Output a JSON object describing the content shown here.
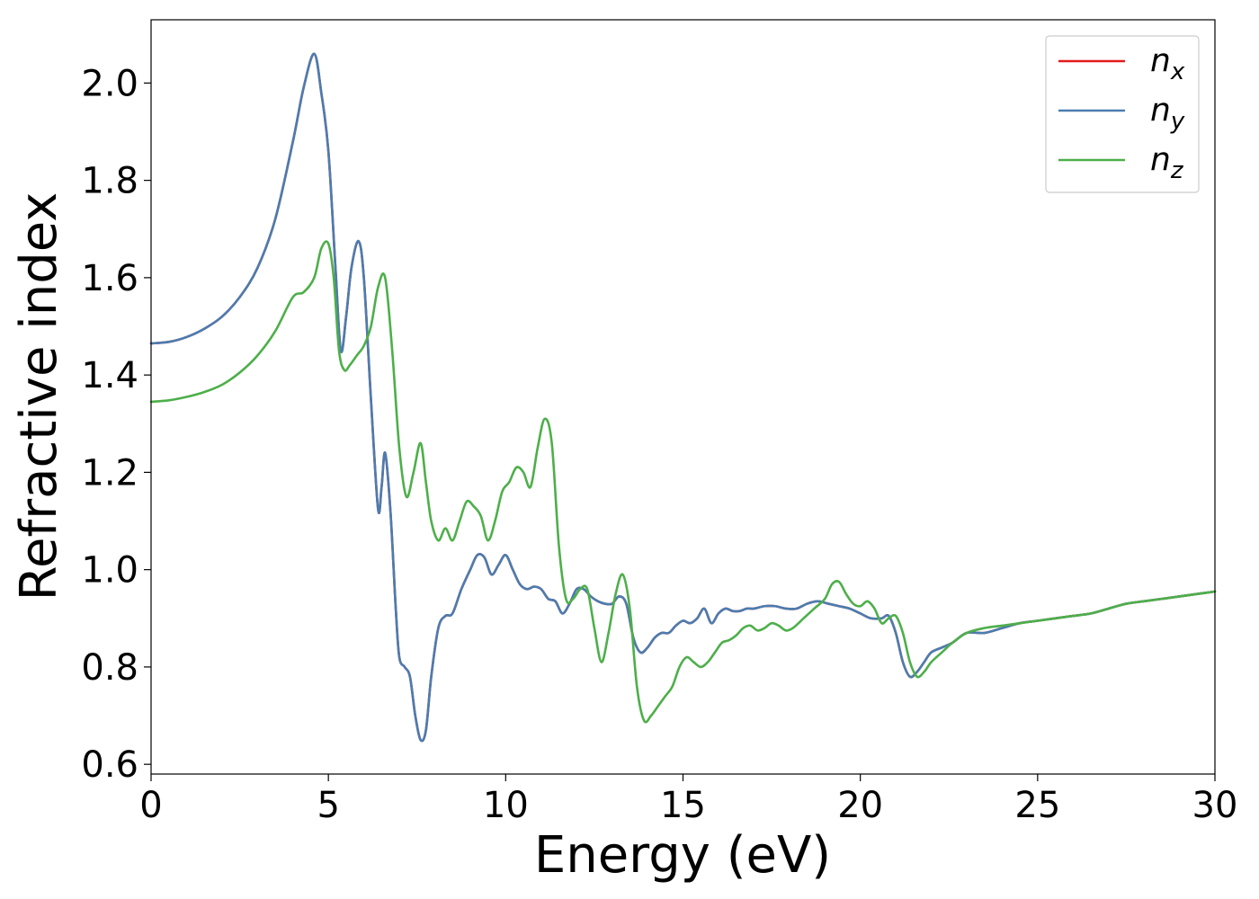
{
  "chart_data": {
    "type": "line",
    "xlabel": "Energy (eV)",
    "ylabel": "Refractive index",
    "xlim": [
      0,
      30
    ],
    "ylim": [
      0.58,
      2.13
    ],
    "xticks": [
      "0",
      "5",
      "10",
      "15",
      "20",
      "25",
      "30"
    ],
    "yticks": [
      "0.6",
      "0.8",
      "1.0",
      "1.2",
      "1.4",
      "1.6",
      "1.8",
      "2.0"
    ],
    "grid": false,
    "legend_position": "top-right",
    "series": [
      {
        "name": "n_x",
        "legend_main": "n",
        "legend_sub": "x",
        "color": "#e41a1c",
        "x": [
          0,
          0.5,
          1,
          1.5,
          2,
          2.5,
          3,
          3.5,
          4,
          4.3,
          4.6,
          4.8,
          5,
          5.2,
          5.35,
          5.5,
          5.65,
          5.85,
          6,
          6.2,
          6.4,
          6.5,
          6.6,
          6.75,
          6.9,
          7,
          7.15,
          7.3,
          7.45,
          7.6,
          7.75,
          7.9,
          8.1,
          8.3,
          8.5,
          8.75,
          9,
          9.2,
          9.4,
          9.6,
          9.8,
          10,
          10.2,
          10.4,
          10.6,
          10.8,
          11,
          11.2,
          11.4,
          11.6,
          11.8,
          12,
          12.2,
          12.4,
          12.6,
          12.8,
          13,
          13.2,
          13.4,
          13.6,
          13.8,
          14,
          14.2,
          14.4,
          14.6,
          14.8,
          15,
          15.2,
          15.4,
          15.6,
          15.8,
          16,
          16.2,
          16.4,
          16.6,
          16.8,
          17,
          17.3,
          17.6,
          17.9,
          18.2,
          18.5,
          18.8,
          19.1,
          19.4,
          19.7,
          20,
          20.3,
          20.6,
          20.8,
          21,
          21.2,
          21.4,
          21.6,
          21.8,
          22,
          22.3,
          22.6,
          23,
          23.5,
          24,
          24.5,
          25,
          25.5,
          26,
          26.5,
          27,
          27.5,
          28,
          28.5,
          29,
          29.5,
          30
        ],
        "y": [
          1.465,
          1.468,
          1.478,
          1.495,
          1.52,
          1.56,
          1.62,
          1.72,
          1.88,
          1.99,
          2.06,
          1.98,
          1.86,
          1.62,
          1.45,
          1.52,
          1.62,
          1.675,
          1.6,
          1.35,
          1.125,
          1.17,
          1.24,
          1.12,
          0.92,
          0.82,
          0.8,
          0.78,
          0.7,
          0.65,
          0.67,
          0.78,
          0.88,
          0.905,
          0.91,
          0.96,
          1.0,
          1.03,
          1.025,
          0.99,
          1.01,
          1.03,
          1.0,
          0.97,
          0.96,
          0.965,
          0.96,
          0.94,
          0.935,
          0.91,
          0.93,
          0.96,
          0.96,
          0.945,
          0.935,
          0.93,
          0.93,
          0.945,
          0.93,
          0.86,
          0.83,
          0.84,
          0.86,
          0.87,
          0.87,
          0.885,
          0.895,
          0.89,
          0.9,
          0.92,
          0.89,
          0.91,
          0.92,
          0.915,
          0.915,
          0.92,
          0.92,
          0.925,
          0.925,
          0.92,
          0.92,
          0.93,
          0.935,
          0.93,
          0.925,
          0.92,
          0.91,
          0.9,
          0.9,
          0.905,
          0.87,
          0.81,
          0.78,
          0.79,
          0.81,
          0.83,
          0.84,
          0.85,
          0.87,
          0.87,
          0.88,
          0.89,
          0.895,
          0.9,
          0.905,
          0.91,
          0.92,
          0.93,
          0.935,
          0.94,
          0.945,
          0.95,
          0.955
        ]
      },
      {
        "name": "n_y",
        "legend_main": "n",
        "legend_sub": "y",
        "color": "#4a7db0",
        "x": [
          0,
          0.5,
          1,
          1.5,
          2,
          2.5,
          3,
          3.5,
          4,
          4.3,
          4.6,
          4.8,
          5,
          5.2,
          5.35,
          5.5,
          5.65,
          5.85,
          6,
          6.2,
          6.4,
          6.5,
          6.6,
          6.75,
          6.9,
          7,
          7.15,
          7.3,
          7.45,
          7.6,
          7.75,
          7.9,
          8.1,
          8.3,
          8.5,
          8.75,
          9,
          9.2,
          9.4,
          9.6,
          9.8,
          10,
          10.2,
          10.4,
          10.6,
          10.8,
          11,
          11.2,
          11.4,
          11.6,
          11.8,
          12,
          12.2,
          12.4,
          12.6,
          12.8,
          13,
          13.2,
          13.4,
          13.6,
          13.8,
          14,
          14.2,
          14.4,
          14.6,
          14.8,
          15,
          15.2,
          15.4,
          15.6,
          15.8,
          16,
          16.2,
          16.4,
          16.6,
          16.8,
          17,
          17.3,
          17.6,
          17.9,
          18.2,
          18.5,
          18.8,
          19.1,
          19.4,
          19.7,
          20,
          20.3,
          20.6,
          20.8,
          21,
          21.2,
          21.4,
          21.6,
          21.8,
          22,
          22.3,
          22.6,
          23,
          23.5,
          24,
          24.5,
          25,
          25.5,
          26,
          26.5,
          27,
          27.5,
          28,
          28.5,
          29,
          29.5,
          30
        ],
        "y": [
          1.465,
          1.468,
          1.478,
          1.495,
          1.52,
          1.56,
          1.62,
          1.72,
          1.88,
          1.99,
          2.06,
          1.98,
          1.86,
          1.62,
          1.45,
          1.52,
          1.62,
          1.675,
          1.6,
          1.35,
          1.125,
          1.17,
          1.24,
          1.12,
          0.92,
          0.82,
          0.8,
          0.78,
          0.7,
          0.65,
          0.67,
          0.78,
          0.88,
          0.905,
          0.91,
          0.96,
          1.0,
          1.03,
          1.025,
          0.99,
          1.01,
          1.03,
          1.0,
          0.97,
          0.96,
          0.965,
          0.96,
          0.94,
          0.935,
          0.91,
          0.93,
          0.96,
          0.96,
          0.945,
          0.935,
          0.93,
          0.93,
          0.945,
          0.93,
          0.86,
          0.83,
          0.84,
          0.86,
          0.87,
          0.87,
          0.885,
          0.895,
          0.89,
          0.9,
          0.92,
          0.89,
          0.91,
          0.92,
          0.915,
          0.915,
          0.92,
          0.92,
          0.925,
          0.925,
          0.92,
          0.92,
          0.93,
          0.935,
          0.93,
          0.925,
          0.92,
          0.91,
          0.9,
          0.9,
          0.905,
          0.87,
          0.81,
          0.78,
          0.79,
          0.81,
          0.83,
          0.84,
          0.85,
          0.87,
          0.87,
          0.88,
          0.89,
          0.895,
          0.9,
          0.905,
          0.91,
          0.92,
          0.93,
          0.935,
          0.94,
          0.945,
          0.95,
          0.955
        ]
      },
      {
        "name": "n_z",
        "legend_main": "n",
        "legend_sub": "z",
        "color": "#4daf4a",
        "x": [
          0,
          0.5,
          1,
          1.5,
          2,
          2.5,
          3,
          3.5,
          4,
          4.3,
          4.6,
          4.8,
          5,
          5.15,
          5.3,
          5.45,
          5.6,
          5.8,
          6,
          6.2,
          6.4,
          6.6,
          6.8,
          7,
          7.2,
          7.4,
          7.6,
          7.75,
          7.9,
          8.1,
          8.3,
          8.5,
          8.7,
          8.9,
          9.1,
          9.3,
          9.5,
          9.7,
          9.9,
          10.1,
          10.3,
          10.5,
          10.7,
          10.9,
          11.1,
          11.3,
          11.5,
          11.7,
          11.9,
          12.1,
          12.3,
          12.5,
          12.7,
          12.9,
          13.1,
          13.3,
          13.5,
          13.7,
          13.9,
          14.1,
          14.3,
          14.5,
          14.7,
          14.9,
          15.1,
          15.3,
          15.5,
          15.7,
          15.9,
          16.1,
          16.3,
          16.5,
          16.7,
          16.9,
          17.1,
          17.3,
          17.5,
          17.7,
          17.9,
          18.1,
          18.4,
          18.7,
          19,
          19.2,
          19.4,
          19.6,
          19.8,
          20,
          20.2,
          20.4,
          20.6,
          20.8,
          21,
          21.2,
          21.4,
          21.6,
          21.8,
          22,
          22.3,
          22.6,
          23,
          23.5,
          24,
          24.5,
          25,
          25.5,
          26,
          26.5,
          27,
          27.5,
          28,
          28.5,
          29,
          29.5,
          30
        ],
        "y": [
          1.345,
          1.348,
          1.355,
          1.365,
          1.38,
          1.405,
          1.44,
          1.49,
          1.56,
          1.57,
          1.6,
          1.66,
          1.67,
          1.6,
          1.45,
          1.41,
          1.42,
          1.44,
          1.46,
          1.5,
          1.58,
          1.6,
          1.45,
          1.25,
          1.15,
          1.2,
          1.26,
          1.18,
          1.1,
          1.06,
          1.085,
          1.06,
          1.1,
          1.14,
          1.13,
          1.11,
          1.06,
          1.1,
          1.16,
          1.18,
          1.21,
          1.2,
          1.17,
          1.25,
          1.31,
          1.26,
          1.05,
          0.94,
          0.94,
          0.96,
          0.96,
          0.88,
          0.81,
          0.87,
          0.95,
          0.99,
          0.92,
          0.76,
          0.69,
          0.7,
          0.72,
          0.74,
          0.76,
          0.8,
          0.82,
          0.81,
          0.8,
          0.81,
          0.83,
          0.85,
          0.855,
          0.865,
          0.88,
          0.885,
          0.875,
          0.88,
          0.89,
          0.885,
          0.875,
          0.88,
          0.9,
          0.92,
          0.94,
          0.97,
          0.975,
          0.95,
          0.93,
          0.925,
          0.935,
          0.92,
          0.89,
          0.9,
          0.905,
          0.87,
          0.81,
          0.78,
          0.79,
          0.81,
          0.83,
          0.85,
          0.87,
          0.88,
          0.885,
          0.89,
          0.895,
          0.9,
          0.905,
          0.91,
          0.92,
          0.93,
          0.935,
          0.94,
          0.945,
          0.95,
          0.955
        ]
      }
    ]
  }
}
